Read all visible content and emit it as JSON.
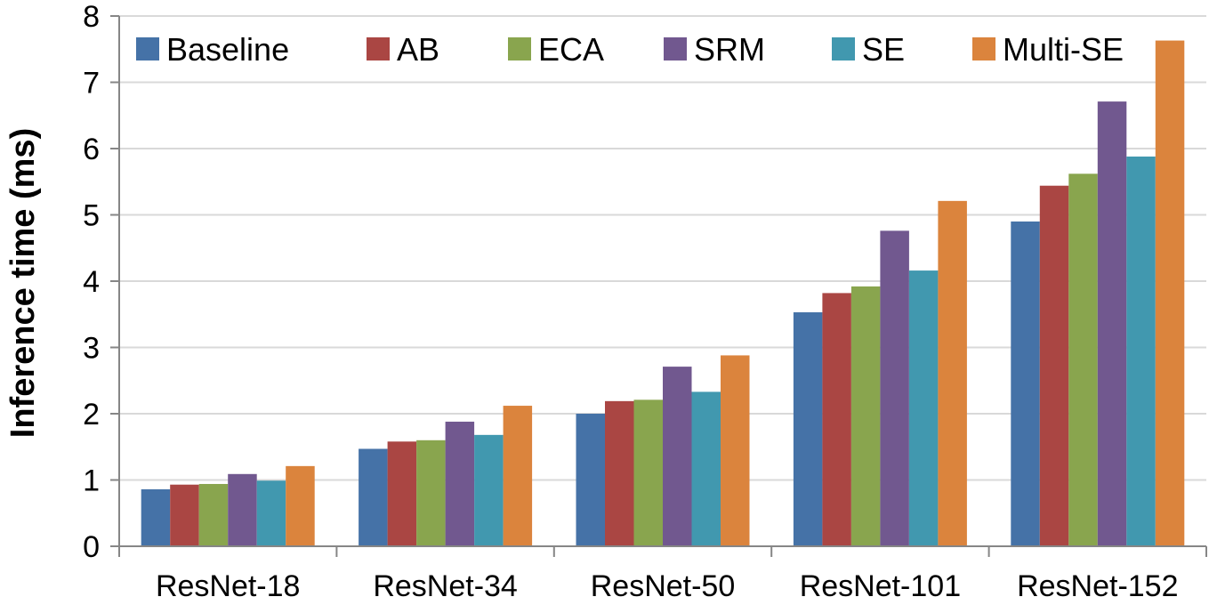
{
  "chart_data": {
    "type": "bar",
    "title": "",
    "xlabel": "",
    "ylabel": "Inference time (ms)",
    "ylim": [
      0,
      8
    ],
    "yticks": [
      0,
      1,
      2,
      3,
      4,
      5,
      6,
      7,
      8
    ],
    "grid": true,
    "legend_position": "top",
    "categories": [
      "ResNet-18",
      "ResNet-34",
      "ResNet-50",
      "ResNet-101",
      "ResNet-152"
    ],
    "series": [
      {
        "name": "Baseline",
        "color": "#4572A7",
        "values": [
          0.86,
          1.47,
          2.0,
          3.53,
          4.9
        ]
      },
      {
        "name": "AB",
        "color": "#AA4643",
        "values": [
          0.93,
          1.58,
          2.19,
          3.82,
          5.44
        ]
      },
      {
        "name": "ECA",
        "color": "#89A54E",
        "values": [
          0.94,
          1.6,
          2.21,
          3.92,
          5.62
        ]
      },
      {
        "name": "SRM",
        "color": "#71588F",
        "values": [
          1.09,
          1.88,
          2.71,
          4.76,
          6.71
        ]
      },
      {
        "name": "SE",
        "color": "#4198AF",
        "values": [
          0.99,
          1.68,
          2.33,
          4.16,
          5.88
        ]
      },
      {
        "name": "Multi-SE",
        "color": "#DB843D",
        "values": [
          1.21,
          2.12,
          2.88,
          5.21,
          7.63
        ]
      }
    ]
  }
}
